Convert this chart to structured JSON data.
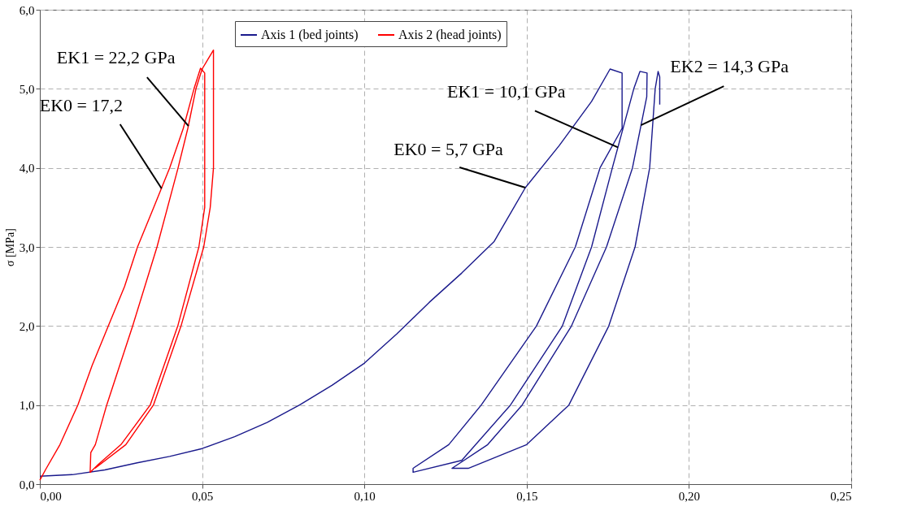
{
  "chart_data": {
    "type": "line",
    "ylabel": "σ [MPa]",
    "xlim": [
      0,
      0.25
    ],
    "xticks": [
      {
        "value": 0,
        "label": "0,00"
      },
      {
        "value": 0.05,
        "label": "0,05"
      },
      {
        "value": 0.1,
        "label": "0,10"
      },
      {
        "value": 0.15,
        "label": "0,15"
      },
      {
        "value": 0.2,
        "label": "0,20"
      },
      {
        "value": 0.25,
        "label": "0,25"
      }
    ],
    "ylim": [
      0,
      6
    ],
    "yticks": [
      {
        "value": 0,
        "label": "0,0"
      },
      {
        "value": 1,
        "label": "1,0"
      },
      {
        "value": 2,
        "label": "2,0"
      },
      {
        "value": 3,
        "label": "3,0"
      },
      {
        "value": 4,
        "label": "4,0"
      },
      {
        "value": 5,
        "label": "5,0"
      },
      {
        "value": 6,
        "label": "6,0"
      }
    ],
    "grid": true,
    "legend": "top",
    "marker": "none",
    "line_style": "solid",
    "series": [
      {
        "name": "Axis 1 (bed joints)",
        "color": "#1a1a8c",
        "x": [
          0,
          0.01,
          0.02,
          0.03,
          0.04,
          0.05,
          0.06,
          0.07,
          0.08,
          0.09,
          0.1,
          0.11,
          0.12,
          0.13,
          0.14,
          0.1496,
          0.16,
          0.17,
          0.1757,
          0.1794,
          0.1794,
          0.1726,
          0.165,
          0.153,
          0.136,
          0.126,
          0.115,
          0.115,
          0.13,
          0.145,
          0.161,
          0.17,
          0.1764,
          0.183,
          0.1849,
          0.1871,
          0.187,
          0.1826,
          0.1746,
          0.1638,
          0.1486,
          0.138,
          0.127,
          0.132,
          0.15,
          0.163,
          0.1753,
          0.1834,
          0.1879,
          0.1896,
          0.1905,
          0.191,
          0.191
        ],
        "values": [
          0.1,
          0.12,
          0.18,
          0.27,
          0.35,
          0.45,
          0.6,
          0.78,
          1.0,
          1.25,
          1.53,
          1.9,
          2.3,
          2.67,
          3.07,
          3.75,
          4.28,
          4.84,
          5.25,
          5.2,
          4.5,
          4.0,
          3.0,
          2.0,
          1.0,
          0.5,
          0.2,
          0.15,
          0.3,
          1.0,
          2.0,
          3.0,
          4.0,
          5.0,
          5.22,
          5.2,
          4.9,
          4.0,
          3.0,
          2.0,
          1.0,
          0.5,
          0.2,
          0.2,
          0.5,
          1.0,
          2.0,
          3.0,
          4.0,
          5.0,
          5.22,
          5.15,
          4.8
        ]
      },
      {
        "name": "Axis 2 (head joints)",
        "color": "#ff0000",
        "x": [
          0,
          0.002,
          0.0062,
          0.0117,
          0.0161,
          0.0211,
          0.0261,
          0.0301,
          0.0351,
          0.04,
          0.0442,
          0.0475,
          0.0495,
          0.0508,
          0.0508,
          0.049,
          0.0425,
          0.034,
          0.025,
          0.018,
          0.0155,
          0.0157,
          0.0171,
          0.0206,
          0.0286,
          0.0361,
          0.0426,
          0.0456,
          0.0481,
          0.05,
          0.0535,
          0.0535,
          0.0525,
          0.0505,
          0.0435,
          0.035,
          0.0265,
          0.017
        ],
        "values": [
          0.05,
          0.2,
          0.5,
          1.0,
          1.5,
          2.0,
          2.5,
          3.0,
          3.5,
          4.0,
          4.5,
          5.0,
          5.26,
          5.2,
          3.5,
          3.0,
          2.0,
          1.0,
          0.5,
          0.25,
          0.15,
          0.4,
          0.5,
          1.0,
          2.0,
          3.0,
          4.0,
          4.5,
          5.0,
          5.25,
          5.49,
          4.0,
          3.5,
          3.0,
          2.0,
          1.0,
          0.5,
          0.2
        ]
      }
    ],
    "annotations": [
      {
        "text": "EK1 = 22,2 GPa",
        "x": 0.0458,
        "y": 4.53
      },
      {
        "text": "EK0 = 17,2",
        "x": 0.0375,
        "y": 3.74
      },
      {
        "text": "EK0 = 5,7 GPa",
        "x": 0.1496,
        "y": 3.75
      },
      {
        "text": "EK1 = 10,1 GPa",
        "x": 0.1781,
        "y": 4.26
      },
      {
        "text": "EK2 = 14,3 GPa",
        "x": 0.1852,
        "y": 4.54
      }
    ]
  }
}
